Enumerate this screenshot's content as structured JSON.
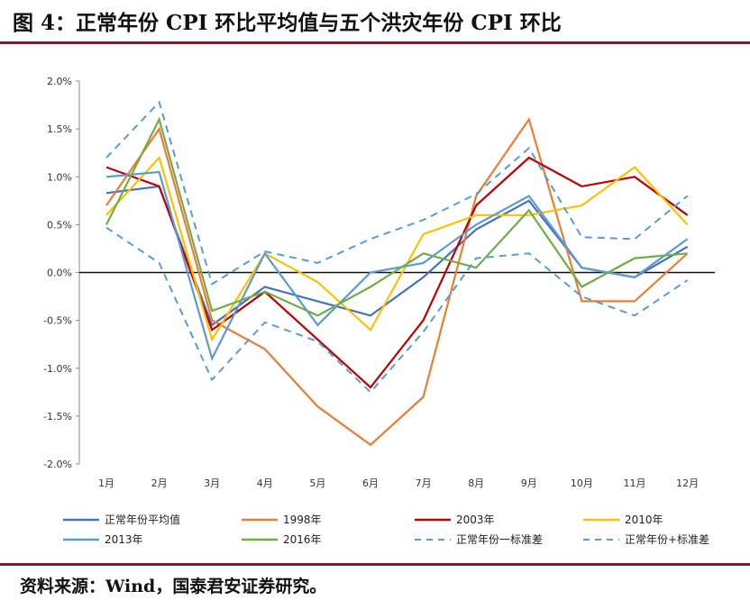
{
  "figure": {
    "title": "图 4：正常年份 CPI 环比平均值与五个洪灾年份 CPI 环比",
    "source": "资料来源：Wind，国泰君安证券研究。"
  },
  "chart_data": {
    "type": "line",
    "title": "",
    "xlabel": "",
    "ylabel": "",
    "categories": [
      "1月",
      "2月",
      "3月",
      "4月",
      "5月",
      "6月",
      "7月",
      "8月",
      "9月",
      "10月",
      "11月",
      "12月"
    ],
    "ylim": [
      -2.0,
      2.0
    ],
    "yticks": [
      "2.0%",
      "1.5%",
      "1.0%",
      "0.5%",
      "0.0%",
      "-0.5%",
      "-1.0%",
      "-1.5%",
      "-2.0%"
    ],
    "ytick_values": [
      2.0,
      1.5,
      1.0,
      0.5,
      0.0,
      -0.5,
      -1.0,
      -1.5,
      -2.0
    ],
    "grid": false,
    "legend_position": "bottom",
    "series": [
      {
        "name": "正常年份平均值",
        "color": "#4472c4",
        "dash": false,
        "values": [
          0.83,
          0.9,
          -0.55,
          -0.15,
          -0.3,
          -0.45,
          -0.05,
          0.45,
          0.75,
          0.05,
          -0.05,
          0.27
        ]
      },
      {
        "name": "1998年",
        "color": "#ed7d31",
        "dash": false,
        "values": [
          0.7,
          1.5,
          -0.5,
          -0.8,
          -1.4,
          -1.8,
          -1.3,
          0.8,
          1.6,
          -0.3,
          -0.3,
          0.2
        ]
      },
      {
        "name": "2003年",
        "color": "#c00000",
        "dash": false,
        "values": [
          1.1,
          0.9,
          -0.6,
          -0.2,
          -0.7,
          -1.2,
          -0.5,
          0.7,
          1.2,
          0.9,
          1.0,
          0.6
        ]
      },
      {
        "name": "2010年",
        "color": "#ffc000",
        "dash": false,
        "values": [
          0.6,
          1.2,
          -0.7,
          0.2,
          -0.1,
          -0.6,
          0.4,
          0.6,
          0.6,
          0.7,
          1.1,
          0.5
        ]
      },
      {
        "name": "2013年",
        "color": "#5b9bd5",
        "dash": false,
        "values": [
          1.0,
          1.05,
          -0.9,
          0.2,
          -0.55,
          0.0,
          0.1,
          0.5,
          0.8,
          0.05,
          -0.05,
          0.35
        ]
      },
      {
        "name": "2016年",
        "color": "#70ad47",
        "dash": false,
        "values": [
          0.5,
          1.6,
          -0.4,
          -0.2,
          -0.45,
          -0.15,
          0.2,
          0.05,
          0.65,
          -0.15,
          0.15,
          0.2
        ]
      },
      {
        "name": "正常年份一标准差",
        "color": "#5b9bd5",
        "dash": true,
        "values": [
          0.47,
          0.1,
          -1.12,
          -0.52,
          -0.72,
          -1.25,
          -0.62,
          0.15,
          0.2,
          -0.25,
          -0.45,
          -0.08
        ]
      },
      {
        "name": "正常年份+标准差",
        "color": "#5b9bd5",
        "dash": true,
        "values": [
          1.2,
          1.78,
          -0.12,
          0.22,
          0.1,
          0.35,
          0.55,
          0.82,
          1.3,
          0.37,
          0.35,
          0.8
        ]
      }
    ]
  }
}
